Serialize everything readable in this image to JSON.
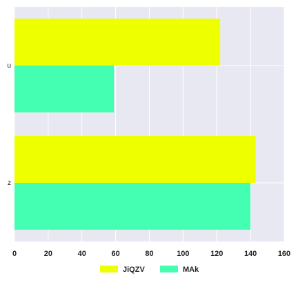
{
  "chart_data": {
    "type": "bar",
    "orientation": "horizontal",
    "categories": [
      "u",
      "z"
    ],
    "series": [
      {
        "name": "JiQZV",
        "color": "#eeff00",
        "values": [
          122,
          143
        ]
      },
      {
        "name": "MAk",
        "color": "#44ffb2",
        "values": [
          59,
          140
        ]
      }
    ],
    "xlim": [
      0,
      160
    ],
    "xticks": [
      "0",
      "20",
      "40",
      "60",
      "80",
      "100",
      "120",
      "140",
      "160"
    ],
    "grid": true,
    "legend_position": "bottom-center",
    "background_color": "#e8e8f2",
    "grid_color": "#ffffff"
  }
}
